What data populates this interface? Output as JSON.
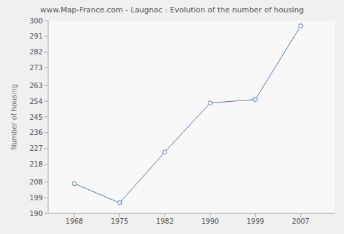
{
  "chart_data": {
    "type": "line",
    "title": "www.Map-France.com - Laugnac : Evolution of the number of housing",
    "y_label": "Number of housing",
    "categories": [
      "1968",
      "1975",
      "1982",
      "1990",
      "1999",
      "2007"
    ],
    "values": [
      207,
      196,
      225,
      253,
      255,
      297
    ],
    "color": "#4f76a3",
    "marker": "circle",
    "ylim": [
      190,
      300
    ],
    "yticks": [
      190,
      199,
      208,
      218,
      227,
      236,
      245,
      254,
      263,
      273,
      282,
      291,
      300
    ],
    "grid": true
  }
}
